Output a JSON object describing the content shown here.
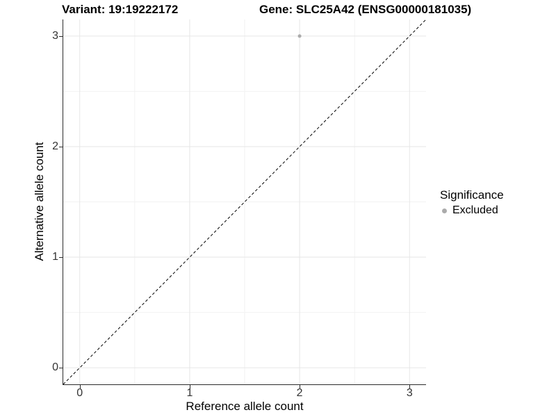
{
  "figure": {
    "titles": {
      "variant": "Variant: 19:19222172",
      "gene": "Gene: SLC25A42 (ENSG00000181035)"
    }
  },
  "legend": {
    "title": "Significance",
    "items": [
      {
        "label": "Excluded",
        "color": "#ababab"
      }
    ]
  },
  "chart_data": {
    "type": "scatter",
    "title": "Variant: 19:19222172 | Gene: SLC25A42 (ENSG00000181035)",
    "xlabel": "Reference allele count",
    "ylabel": "Alternative allele count",
    "xlim": [
      -0.15,
      3.15
    ],
    "ylim": [
      -0.15,
      3.15
    ],
    "xticks": [
      0,
      1,
      2,
      3
    ],
    "xtick_labels": [
      "0",
      "1",
      "2",
      "3"
    ],
    "yticks": [
      0,
      1,
      2,
      3
    ],
    "ytick_labels": [
      "0",
      "1",
      "2",
      "3"
    ],
    "minor_xticks": [
      0.5,
      1.5,
      2.5
    ],
    "minor_yticks": [
      0.5,
      1.5,
      2.5
    ],
    "grid": "on",
    "legend_position": "right",
    "series": [
      {
        "name": "Excluded",
        "color": "#ababab",
        "points": [
          {
            "x": 2,
            "y": 3
          }
        ]
      }
    ],
    "reference_line": {
      "slope": 1,
      "intercept": 0,
      "style": "dashed",
      "color": "#000000"
    }
  },
  "style": {
    "grid_major_color": "#e6e6e6",
    "grid_minor_color": "#f2f2f2",
    "axis_color": "#2b2b2b",
    "point_radius": 2.5,
    "ref_line_dash": "4 3"
  }
}
